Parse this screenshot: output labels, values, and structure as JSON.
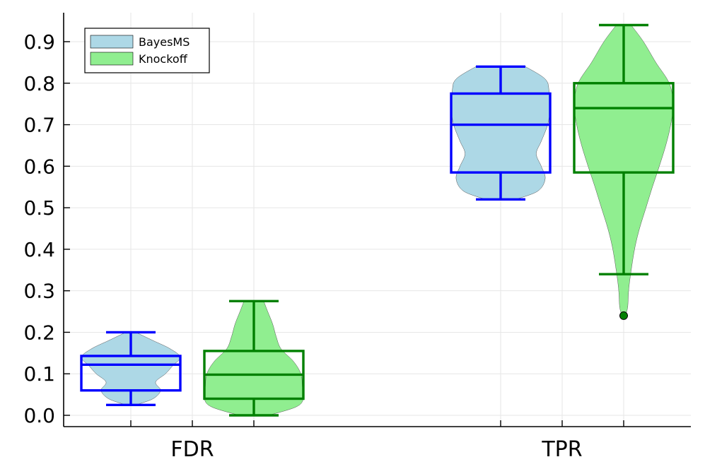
{
  "chart_data": {
    "type": "violin-box",
    "categories": [
      "FDR",
      "TPR"
    ],
    "ylim": [
      -0.03,
      0.97
    ],
    "yticks": [
      0.0,
      0.1,
      0.2,
      0.3,
      0.4,
      0.5,
      0.6,
      0.7,
      0.8,
      0.9
    ],
    "ytick_labels": [
      "0.0",
      "0.1",
      "0.2",
      "0.3",
      "0.4",
      "0.5",
      "0.6",
      "0.7",
      "0.8",
      "0.9"
    ],
    "grid": true,
    "legend": {
      "placement": "top-left"
    },
    "series": [
      {
        "name": "BayesMS",
        "fill_color": "#add8e6",
        "box_color": "#0000ff",
        "groups": [
          {
            "category": "FDR",
            "whisker_low": 0.025,
            "q1": 0.06,
            "median": 0.122,
            "q3": 0.143,
            "whisker_high": 0.2,
            "outliers": [],
            "density": [
              [
                0.025,
                0.1
              ],
              [
                0.04,
                0.45
              ],
              [
                0.06,
                0.6
              ],
              [
                0.08,
                0.5
              ],
              [
                0.1,
                0.7
              ],
              [
                0.12,
                0.85
              ],
              [
                0.14,
                1.0
              ],
              [
                0.16,
                0.8
              ],
              [
                0.18,
                0.45
              ],
              [
                0.2,
                0.1
              ]
            ]
          },
          {
            "category": "TPR",
            "whisker_low": 0.52,
            "q1": 0.585,
            "median": 0.7,
            "q3": 0.775,
            "whisker_high": 0.84,
            "outliers": [],
            "density": [
              [
                0.52,
                0.3
              ],
              [
                0.54,
                0.75
              ],
              [
                0.57,
                0.9
              ],
              [
                0.6,
                0.82
              ],
              [
                0.63,
                0.72
              ],
              [
                0.66,
                0.82
              ],
              [
                0.7,
                0.95
              ],
              [
                0.74,
                1.0
              ],
              [
                0.78,
                0.98
              ],
              [
                0.81,
                0.9
              ],
              [
                0.84,
                0.5
              ]
            ]
          }
        ]
      },
      {
        "name": "Knockoff",
        "fill_color": "#90ee90",
        "box_color": "#008000",
        "groups": [
          {
            "category": "FDR",
            "whisker_low": 0.0,
            "q1": 0.04,
            "median": 0.098,
            "q3": 0.155,
            "whisker_high": 0.275,
            "outliers": [],
            "density": [
              [
                0.0,
                0.3
              ],
              [
                0.02,
                0.85
              ],
              [
                0.04,
                1.0
              ],
              [
                0.07,
                0.98
              ],
              [
                0.1,
                0.95
              ],
              [
                0.13,
                0.8
              ],
              [
                0.16,
                0.55
              ],
              [
                0.19,
                0.45
              ],
              [
                0.22,
                0.38
              ],
              [
                0.25,
                0.28
              ],
              [
                0.275,
                0.2
              ]
            ]
          },
          {
            "category": "TPR",
            "whisker_low": 0.34,
            "q1": 0.585,
            "median": 0.74,
            "q3": 0.8,
            "whisker_high": 0.94,
            "outliers": [
              0.24
            ],
            "density": [
              [
                0.24,
                0.03
              ],
              [
                0.26,
                0.08
              ],
              [
                0.3,
                0.1
              ],
              [
                0.34,
                0.14
              ],
              [
                0.4,
                0.22
              ],
              [
                0.45,
                0.32
              ],
              [
                0.5,
                0.45
              ],
              [
                0.55,
                0.58
              ],
              [
                0.6,
                0.72
              ],
              [
                0.65,
                0.85
              ],
              [
                0.7,
                0.95
              ],
              [
                0.75,
                1.0
              ],
              [
                0.8,
                0.92
              ],
              [
                0.85,
                0.65
              ],
              [
                0.9,
                0.4
              ],
              [
                0.94,
                0.15
              ]
            ]
          }
        ]
      }
    ]
  }
}
